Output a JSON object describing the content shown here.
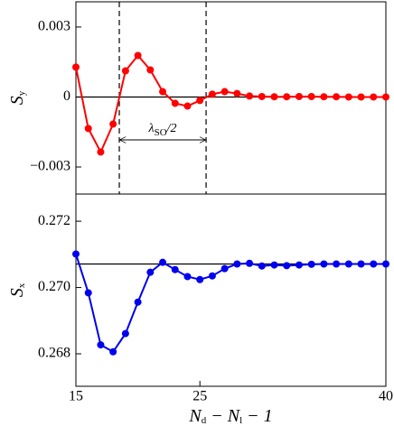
{
  "chart_data": [
    {
      "type": "line",
      "color": "#ff0000",
      "y_label": [
        "S",
        "y"
      ],
      "x": [
        15,
        16,
        17,
        18,
        19,
        20,
        21,
        22,
        23,
        24,
        25,
        26,
        27,
        28,
        29,
        30,
        31,
        32,
        33,
        34,
        35,
        36,
        37,
        38,
        39,
        40
      ],
      "values": [
        0.00128,
        -0.00135,
        -0.00236,
        -0.00116,
        0.00112,
        0.00178,
        0.00116,
        0.00023,
        -0.00027,
        -0.00039,
        -0.00015,
        0.00012,
        0.00023,
        0.00015,
        4e-05,
        2e-05,
        1e-05,
        1e-05,
        2e-05,
        2e-05,
        1e-05,
        1e-05,
        0.0,
        0.0,
        0.0,
        0.0
      ],
      "xlim": [
        15,
        40
      ],
      "ylim": [
        -0.00416,
        0.00408
      ],
      "yticks": [
        {
          "value": -0.003,
          "label": "−0.003"
        },
        0,
        0.003
      ],
      "hline": 0,
      "vlines": [
        18.5,
        25.5
      ],
      "annotation": [
        "λ",
        "SO",
        "/2"
      ]
    },
    {
      "type": "line",
      "color": "#0000ee",
      "y_label": [
        "S",
        "x"
      ],
      "x_label": [
        "N",
        "d",
        " − N",
        "l",
        " − 1"
      ],
      "x": [
        15,
        16,
        17,
        18,
        19,
        20,
        21,
        22,
        23,
        24,
        25,
        26,
        27,
        28,
        29,
        30,
        31,
        32,
        33,
        34,
        35,
        36,
        37,
        38,
        39,
        40
      ],
      "values": [
        0.27101,
        0.26984,
        0.26827,
        0.26806,
        0.26861,
        0.26956,
        0.27046,
        0.27076,
        0.27054,
        0.27033,
        0.27024,
        0.27035,
        0.27057,
        0.27071,
        0.27073,
        0.27065,
        0.27068,
        0.27066,
        0.27068,
        0.2707,
        0.27071,
        0.27071,
        0.27071,
        0.27071,
        0.27071,
        0.27071
      ],
      "xlim": [
        15,
        40
      ],
      "ylim": [
        0.26702,
        0.27282
      ],
      "xticks": [
        15,
        25,
        40
      ],
      "yticks": [
        0.268,
        {
          "value": 0.27,
          "label": "0.270"
        },
        0.272
      ],
      "hline": 0.27071
    }
  ]
}
